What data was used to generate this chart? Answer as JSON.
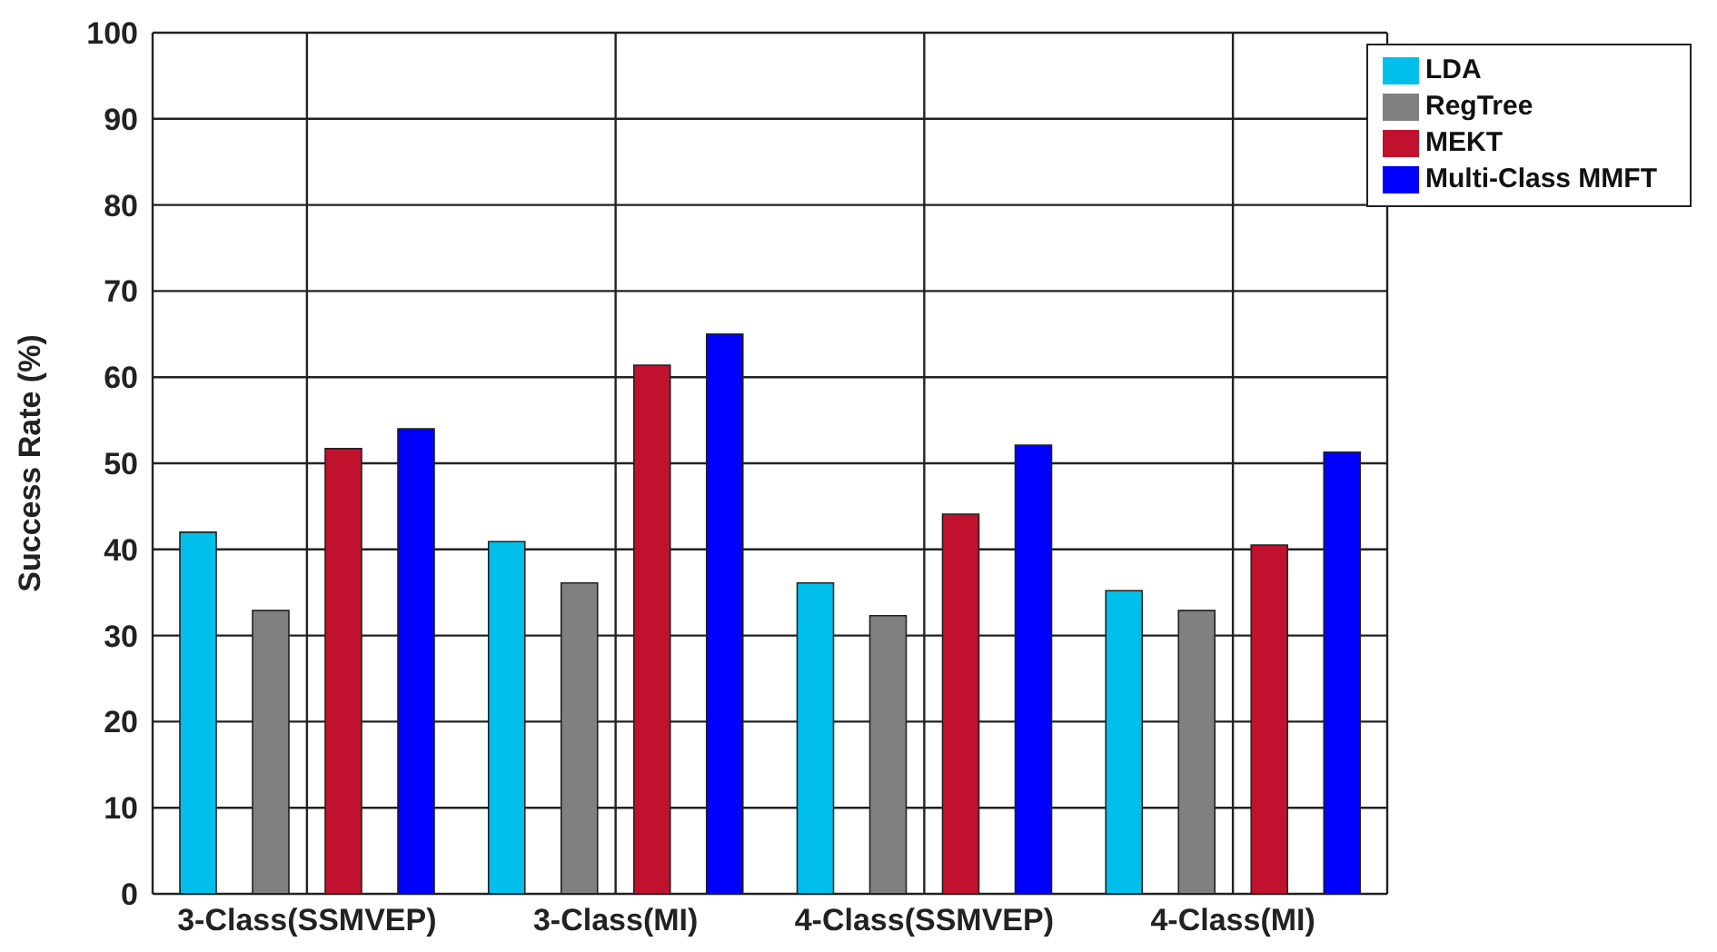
{
  "chart_data": {
    "type": "bar",
    "ylabel": "Success Rate (%)",
    "categories": [
      "3-Class(SSMVEP)",
      "3-Class(MI)",
      "4-Class(SSMVEP)",
      "4-Class(MI)"
    ],
    "series": [
      {
        "name": "LDA",
        "color": "#00bfeb",
        "values": [
          42.0,
          40.9,
          36.1,
          35.2
        ]
      },
      {
        "name": "RegTree",
        "color": "#808080",
        "values": [
          32.9,
          36.1,
          32.3,
          32.9
        ]
      },
      {
        "name": "MEKT",
        "color": "#c0112f",
        "values": [
          51.7,
          61.4,
          44.1,
          40.5
        ]
      },
      {
        "name": "Multi-Class MMFT",
        "color": "#0000ff",
        "values": [
          54.0,
          65.0,
          52.1,
          51.3
        ]
      }
    ],
    "ylim": [
      0,
      100
    ],
    "yticks": [
      0,
      10,
      20,
      30,
      40,
      50,
      60,
      70,
      80,
      90,
      100
    ],
    "grid": true,
    "legend": "top right"
  }
}
